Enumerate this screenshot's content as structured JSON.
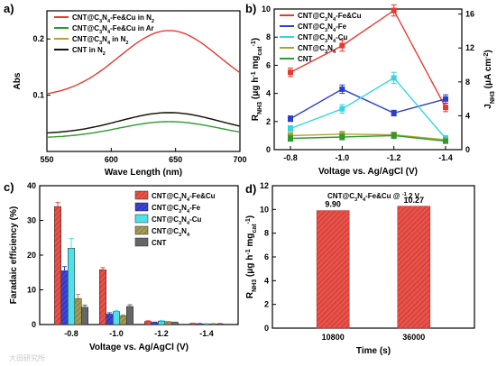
{
  "panels": {
    "a": "a)",
    "b": "b)",
    "c": "c)",
    "d": "d)"
  },
  "watermark": "大田研究所",
  "chart_data": [
    {
      "panel": "a",
      "type": "line",
      "xlabel": "Wave Length (nm)",
      "ylabel": "Abs",
      "xlim": [
        550,
        700
      ],
      "ylim": [
        0,
        0.25
      ],
      "xticks": [
        "550",
        "600",
        "650",
        "700"
      ],
      "yticks": [
        "0.1",
        "0.2"
      ],
      "ytick_values": [
        0.1,
        0.2
      ],
      "legend_position": "top-left",
      "series": [
        {
          "name": "CNT@C3N4-Fe&Cu in N2",
          "color": "#e8392f",
          "peak": 0.215
        },
        {
          "name": "CNT@C3N4-Fe&Cu in Ar",
          "color": "#2e9a2e",
          "peak": 0.053
        },
        {
          "name": "CNT@C3N4 in N2",
          "color": "#b6a32a",
          "peak": 0.069
        },
        {
          "name": "CNT in N2",
          "color": "#111111",
          "peak": 0.069
        }
      ]
    },
    {
      "panel": "b",
      "type": "line",
      "xlabel": "Voltage vs. Ag/AgCl (V)",
      "ylabel": "RNH3 (μg h-1 mgcat-1)",
      "ylabel_right": "JNH3 (μA cm-2)",
      "categories": [
        "-0.8",
        "-1.0",
        "-1.2",
        "-1.4"
      ],
      "ylim": [
        0,
        10
      ],
      "yticks": [
        "0",
        "2",
        "4",
        "6",
        "8",
        "10"
      ],
      "ytick_values": [
        0,
        2,
        4,
        6,
        8,
        10
      ],
      "y2lim": [
        0,
        16.6
      ],
      "y2ticks": [
        "0",
        "4",
        "8",
        "12",
        "16"
      ],
      "y2tick_values": [
        0,
        4,
        8,
        12,
        16
      ],
      "legend_position": "top-left",
      "series": [
        {
          "name": "CNT@C3N4-Fe&Cu",
          "color": "#e8392f",
          "values": [
            5.5,
            7.4,
            9.9,
            3.0
          ],
          "errors": [
            0.3,
            0.4,
            0.4,
            0.3
          ]
        },
        {
          "name": "CNT@C3N4-Fe",
          "color": "#2b3fc9",
          "values": [
            2.2,
            4.3,
            2.6,
            3.6
          ],
          "errors": [
            0.2,
            0.3,
            0.2,
            0.3
          ]
        },
        {
          "name": "CNT@C3N4-Cu",
          "color": "#33d6e0",
          "values": [
            1.5,
            2.9,
            5.1,
            0.8
          ],
          "errors": [
            0.2,
            0.3,
            0.4,
            0.2
          ]
        },
        {
          "name": "CNT@C3N4",
          "color": "#b0a030",
          "values": [
            1.0,
            1.1,
            1.05,
            0.7
          ],
          "errors": [
            0.2,
            0.2,
            0.2,
            0.1
          ]
        },
        {
          "name": "CNT",
          "color": "#2e9a2e",
          "values": [
            0.8,
            0.9,
            1.0,
            0.6
          ],
          "errors": [
            0.2,
            0.2,
            0.2,
            0.1
          ]
        }
      ]
    },
    {
      "panel": "c",
      "type": "bar",
      "xlabel": "Voltage vs. Ag/AgCl (V)",
      "ylabel": "Faradaic efficiency (%)",
      "categories": [
        "-0.8",
        "-1.0",
        "-1.2",
        "-1.4"
      ],
      "ylim": [
        0,
        40
      ],
      "yticks": [
        "0",
        "10",
        "20",
        "30",
        "40"
      ],
      "ytick_values": [
        0,
        10,
        20,
        30,
        40
      ],
      "legend_position": "top-right",
      "series": [
        {
          "name": "CNT@C3N4-Fe&Cu",
          "color": "#e8524a",
          "values": [
            34.0,
            15.8,
            0.9,
            0.3
          ],
          "errors": [
            1.2,
            0.6,
            0.2,
            0.1
          ]
        },
        {
          "name": "CNT@C3N4-Fe",
          "color": "#3c45d8",
          "values": [
            15.5,
            3.0,
            0.6,
            0.2
          ],
          "errors": [
            1.2,
            0.4,
            0.1,
            0.1
          ]
        },
        {
          "name": "CNT@C3N4-Cu",
          "color": "#4fe0ea",
          "values": [
            22.0,
            3.7,
            1.0,
            0.2
          ],
          "errors": [
            2.8,
            0.4,
            0.2,
            0.1
          ]
        },
        {
          "name": "CNT@C3N4",
          "color": "#a59a52",
          "values": [
            7.5,
            2.5,
            0.8,
            0.2
          ],
          "errors": [
            1.2,
            0.3,
            0.1,
            0.1
          ]
        },
        {
          "name": "CNT",
          "color": "#666666",
          "values": [
            5.0,
            5.2,
            0.6,
            0.2
          ],
          "errors": [
            0.6,
            0.5,
            0.1,
            0.1
          ]
        }
      ]
    },
    {
      "panel": "d",
      "type": "bar",
      "title": "CNT@C3N4-Fe&Cu @ -1.2 V",
      "xlabel": "Time (s)",
      "ylabel": "RNH3 (μg h-1 mgcat-1)",
      "categories": [
        "10800",
        "36000"
      ],
      "values": [
        9.9,
        10.27
      ],
      "value_labels": [
        "9.90",
        "10.27"
      ],
      "color": "#e8524a",
      "ylim": [
        0,
        12
      ],
      "yticks": [
        "0",
        "2",
        "4",
        "6",
        "8",
        "10",
        "12"
      ],
      "ytick_values": [
        0,
        2,
        4,
        6,
        8,
        10,
        12
      ]
    }
  ]
}
